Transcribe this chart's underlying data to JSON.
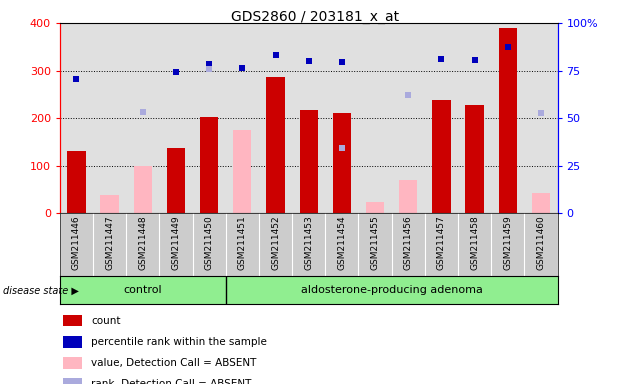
{
  "title": "GDS2860 / 203181_x_at",
  "samples": [
    "GSM211446",
    "GSM211447",
    "GSM211448",
    "GSM211449",
    "GSM211450",
    "GSM211451",
    "GSM211452",
    "GSM211453",
    "GSM211454",
    "GSM211455",
    "GSM211456",
    "GSM211457",
    "GSM211458",
    "GSM211459",
    "GSM211460"
  ],
  "count_values": [
    130,
    0,
    0,
    138,
    202,
    0,
    287,
    218,
    210,
    0,
    0,
    238,
    228,
    390,
    0
  ],
  "percentile_rank": [
    283,
    null,
    null,
    298,
    314,
    305,
    333,
    320,
    318,
    null,
    null,
    324,
    323,
    350,
    null
  ],
  "absent_value": [
    null,
    38,
    100,
    null,
    null,
    175,
    null,
    null,
    null,
    23,
    70,
    null,
    null,
    null,
    42
  ],
  "absent_rank": [
    null,
    null,
    213,
    null,
    304,
    null,
    null,
    null,
    137,
    null,
    248,
    null,
    null,
    null,
    210
  ],
  "control_group": [
    0,
    1,
    2,
    3,
    4
  ],
  "adenoma_group": [
    5,
    6,
    7,
    8,
    9,
    10,
    11,
    12,
    13,
    14
  ],
  "bar_color_red": "#CC0000",
  "bar_color_pink": "#FFB6C1",
  "dot_color_blue": "#0000BB",
  "dot_color_lightblue": "#AAAADD",
  "left_ylim": [
    0,
    400
  ],
  "yticks_left": [
    0,
    100,
    200,
    300,
    400
  ],
  "yticks_right_labels": [
    "0",
    "25",
    "50",
    "75",
    "100%"
  ],
  "legend_labels": [
    "count",
    "percentile rank within the sample",
    "value, Detection Call = ABSENT",
    "rank, Detection Call = ABSENT"
  ],
  "plot_bg_color": "#E0E0E0",
  "xtick_bg_color": "#CCCCCC",
  "control_label": "control",
  "adenoma_label": "aldosterone-producing adenoma",
  "group_bg_color": "#90EE90",
  "disease_state_label": "disease state"
}
